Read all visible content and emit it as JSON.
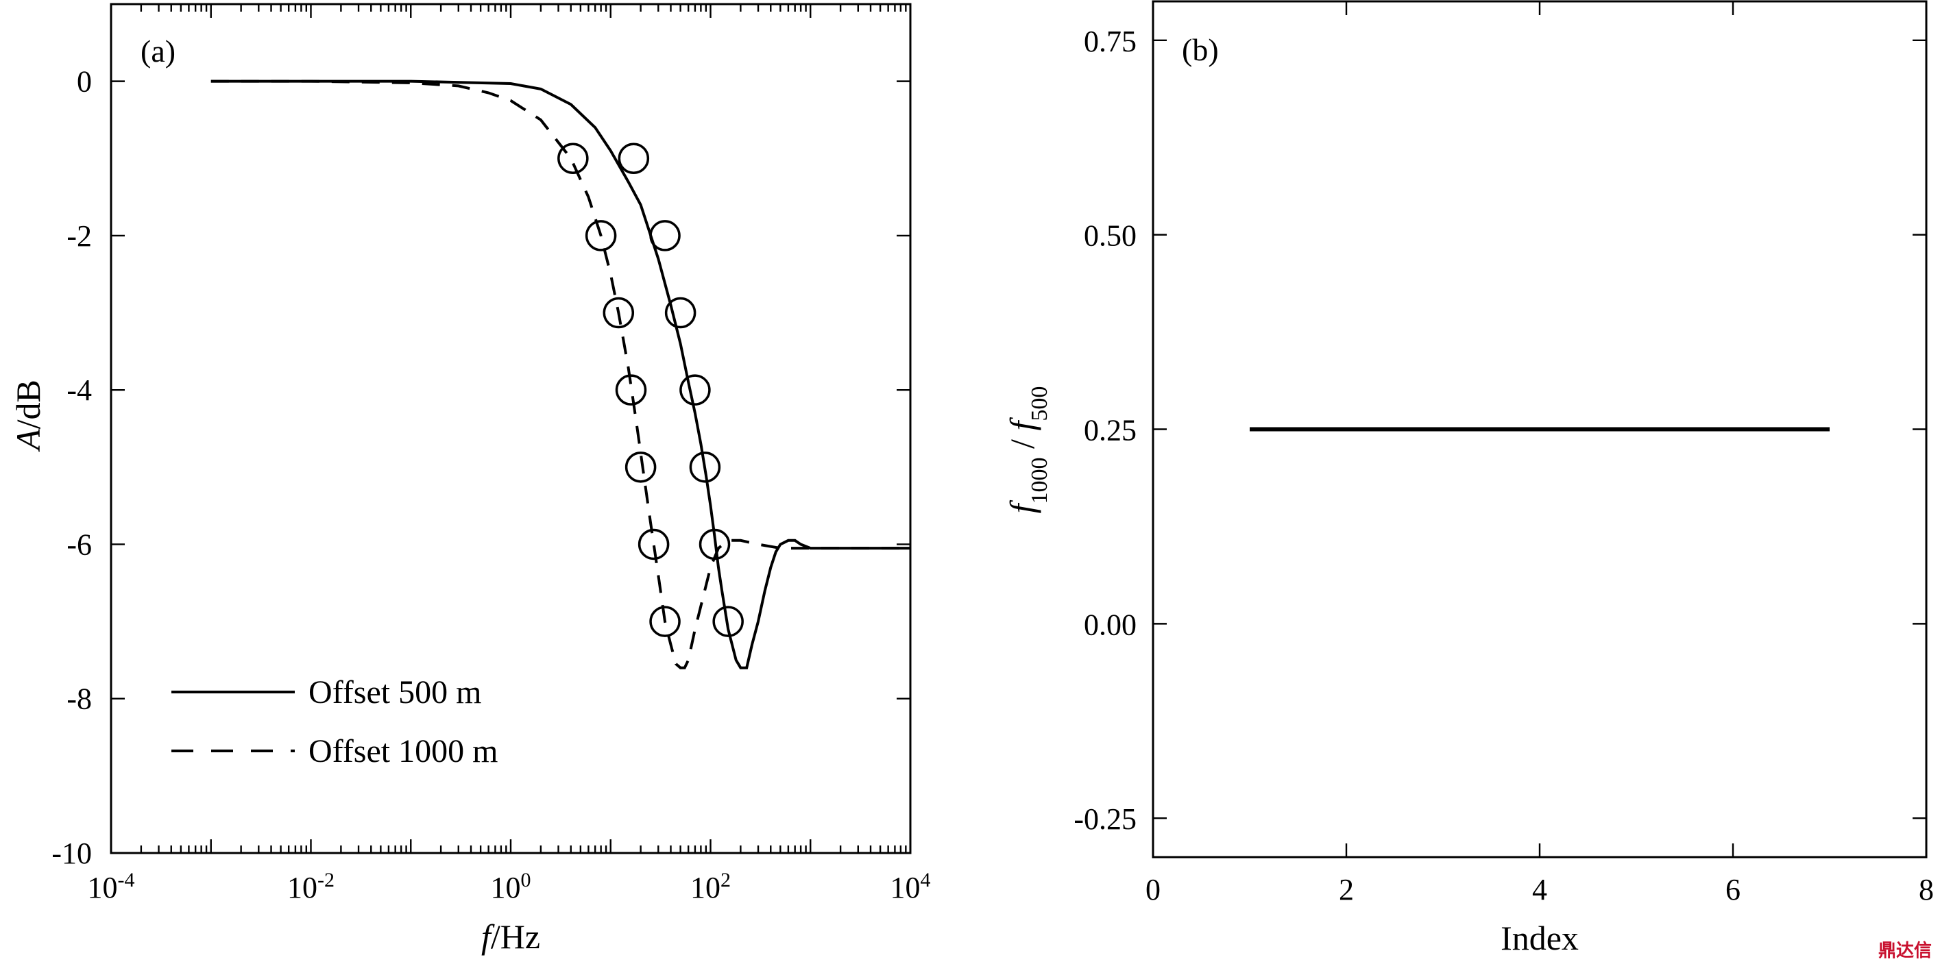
{
  "chart_data": [
    {
      "type": "line",
      "panel_label": "(a)",
      "xlabel": "f",
      "xlabel_unit": "/Hz",
      "ylabel": "A",
      "ylabel_unit": "/dB",
      "xscale": "log",
      "xlim": [
        0.0001,
        10000
      ],
      "ylim": [
        -10,
        1
      ],
      "x_ticks": [
        {
          "base": "10",
          "exp": "-4",
          "value": 0.0001
        },
        {
          "base": "10",
          "exp": "-2",
          "value": 0.01
        },
        {
          "base": "10",
          "exp": "0",
          "value": 1
        },
        {
          "base": "10",
          "exp": "2",
          "value": 100
        },
        {
          "base": "10",
          "exp": "4",
          "value": 10000
        }
      ],
      "y_ticks": [
        {
          "label": "0",
          "value": 0
        },
        {
          "label": "-2",
          "value": -2
        },
        {
          "label": "-4",
          "value": -4
        },
        {
          "label": "-6",
          "value": -6
        },
        {
          "label": "-8",
          "value": -8
        },
        {
          "label": "-10",
          "value": -10
        }
      ],
      "legend_position": "bottom-left",
      "series": [
        {
          "name": "Offset 500 m",
          "style": "solid",
          "x": [
            0.001,
            0.01,
            0.1,
            1,
            2,
            4,
            7,
            10,
            15,
            20,
            30,
            40,
            50,
            60,
            70,
            80,
            90,
            100,
            110,
            120,
            130,
            150,
            180,
            200,
            230,
            260,
            300,
            350,
            400,
            450,
            500,
            600,
            700,
            800,
            1000,
            1500,
            2000,
            5000,
            10000
          ],
          "y": [
            0,
            0,
            0,
            -0.03,
            -0.1,
            -0.3,
            -0.6,
            -0.9,
            -1.3,
            -1.6,
            -2.3,
            -2.9,
            -3.4,
            -3.9,
            -4.3,
            -4.7,
            -5.1,
            -5.5,
            -5.9,
            -6.3,
            -6.6,
            -7.1,
            -7.5,
            -7.6,
            -7.6,
            -7.3,
            -7.0,
            -6.6,
            -6.3,
            -6.1,
            -6.0,
            -5.95,
            -5.95,
            -6.0,
            -6.05,
            -6.05,
            -6.05,
            -6.05,
            -6.05
          ],
          "markers": {
            "x": [
              17,
              35,
              50,
              70,
              88,
              110,
              150
            ],
            "y": [
              -1,
              -2,
              -3,
              -4,
              -5,
              -6,
              -7
            ]
          }
        },
        {
          "name": "Offset 1000 m",
          "style": "dashed",
          "x": [
            0.001,
            0.01,
            0.1,
            0.3,
            0.6,
            1,
            2,
            4,
            6,
            8,
            10,
            12,
            15,
            18,
            22,
            25,
            30,
            35,
            40,
            45,
            50,
            55,
            60,
            70,
            80,
            100,
            120,
            150,
            200,
            300,
            500,
            1000,
            10000
          ],
          "y": [
            0,
            0,
            -0.02,
            -0.06,
            -0.15,
            -0.25,
            -0.5,
            -1.0,
            -1.5,
            -2.0,
            -2.5,
            -3.0,
            -3.7,
            -4.4,
            -5.2,
            -5.7,
            -6.4,
            -7.0,
            -7.3,
            -7.55,
            -7.6,
            -7.6,
            -7.5,
            -7.1,
            -6.8,
            -6.3,
            -6.05,
            -5.95,
            -5.95,
            -6.0,
            -6.05,
            -6.05,
            -6.05
          ],
          "markers": {
            "x": [
              4.2,
              8,
              12,
              16,
              20,
              27,
              35
            ],
            "y": [
              -1,
              -2,
              -3,
              -4,
              -5,
              -6,
              -7
            ]
          }
        }
      ]
    },
    {
      "type": "line",
      "panel_label": "(b)",
      "xlabel": "Index",
      "ylabel_parts": [
        {
          "t": "f",
          "italic": true
        },
        {
          "t": "1000",
          "sub": true
        },
        {
          "t": " / ",
          "italic": false
        },
        {
          "t": "f",
          "italic": true
        },
        {
          "t": "500",
          "sub": true
        }
      ],
      "xlim": [
        0,
        8
      ],
      "ylim": [
        -0.3,
        0.8
      ],
      "x_ticks": [
        {
          "label": "0",
          "value": 0
        },
        {
          "label": "2",
          "value": 2
        },
        {
          "label": "4",
          "value": 4
        },
        {
          "label": "6",
          "value": 6
        },
        {
          "label": "8",
          "value": 8
        }
      ],
      "y_ticks": [
        {
          "label": "-0.25",
          "value": -0.25
        },
        {
          "label": "0.00",
          "value": 0
        },
        {
          "label": "0.25",
          "value": 0.25
        },
        {
          "label": "0.50",
          "value": 0.5
        },
        {
          "label": "0.75",
          "value": 0.75
        }
      ],
      "series": [
        {
          "style": "solid",
          "x": [
            1,
            2,
            3,
            4,
            5,
            6,
            7
          ],
          "y": [
            0.25,
            0.25,
            0.25,
            0.25,
            0.25,
            0.25,
            0.25
          ]
        }
      ]
    }
  ],
  "watermark": "鼎达信"
}
